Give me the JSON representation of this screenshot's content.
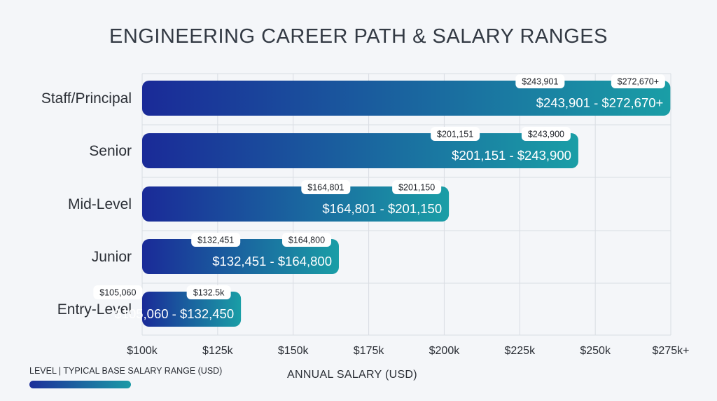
{
  "title": "ENGINEERING CAREER PATH & SALARY RANGES",
  "legend_label": "LEVEL |  TYPICAL BASE SALARY RANGE (USD)",
  "colors": {
    "bar_start": "#1a2a98",
    "bar_end": "#1a9ea6",
    "grid": "#d9dde3",
    "text": "#2b2f36"
  },
  "chart_data": {
    "type": "bar",
    "orientation": "horizontal",
    "xlabel": "ANNUAL SALARY (USD)",
    "xlim": [
      100000,
      275000
    ],
    "x_ticks": [
      100000,
      125000,
      150000,
      175000,
      200000,
      225000,
      250000,
      275000
    ],
    "x_tick_labels": [
      "$100k",
      "$125k",
      "$150k",
      "$175k",
      "$200k",
      "$225k",
      "$250k",
      "$275k+"
    ],
    "grid": true,
    "categories": [
      "Staff/Principal",
      "Senior",
      "Mid-Level",
      "Junior",
      "Entry-Level"
    ],
    "ranges": [
      {
        "level": "Staff/Principal",
        "min": 243901,
        "max": 272670,
        "label": "$243,901 - $272,670+",
        "min_tag": "$243,901",
        "max_tag": "$272,670+"
      },
      {
        "level": "Senior",
        "min": 201151,
        "max": 243900,
        "label": "$201,151 - $243,900",
        "min_tag": "$201,151",
        "max_tag": "$243,900"
      },
      {
        "level": "Mid-Level",
        "min": 164801,
        "max": 201150,
        "label": "$164,801 - $201,150",
        "min_tag": "$164,801",
        "max_tag": "$201,150"
      },
      {
        "level": "Junior",
        "min": 132451,
        "max": 164800,
        "label": "$132,451 - $164,800",
        "min_tag": "$132,451",
        "max_tag": "$164,800"
      },
      {
        "level": "Entry-Level",
        "min": 105060,
        "max": 132450,
        "label": "$105,060 - $132,450",
        "min_tag": "$105,060",
        "max_tag": "$132.5k"
      }
    ]
  }
}
